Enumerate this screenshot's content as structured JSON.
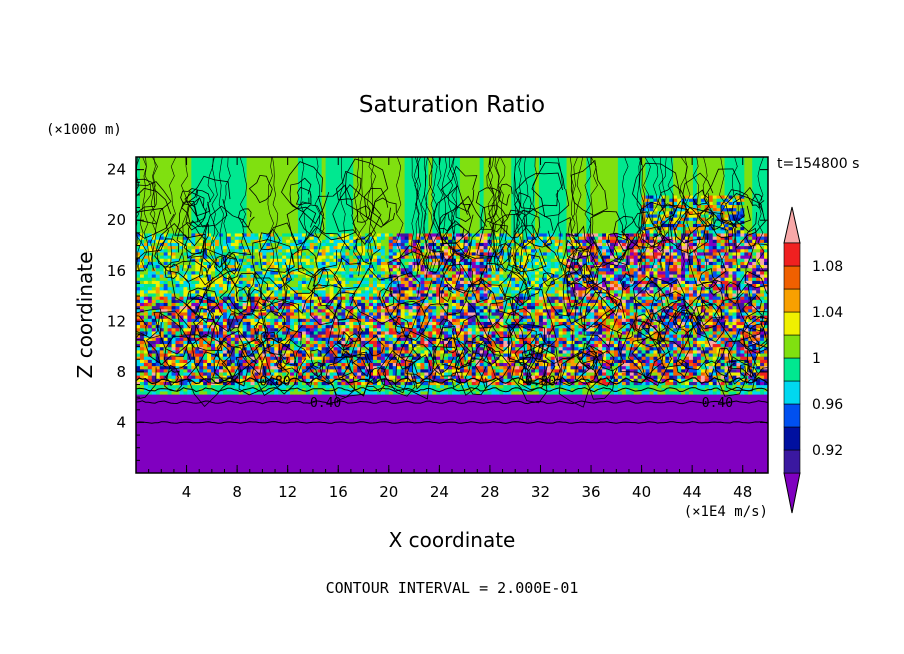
{
  "chart_data": {
    "type": "heatmap",
    "title": "Saturation Ratio",
    "xlabel": "X coordinate",
    "ylabel": "Z coordinate",
    "x_units": "(×1E4 m/s)",
    "y_units": "(×1000 m)",
    "time_label": "t=154800 s",
    "footer": "CONTOUR INTERVAL = 2.000E-01",
    "xlim": [
      0,
      50
    ],
    "ylim": [
      0,
      25
    ],
    "x_ticks": [
      4,
      8,
      12,
      16,
      20,
      24,
      28,
      32,
      36,
      40,
      44,
      48
    ],
    "y_ticks": [
      4,
      8,
      12,
      16,
      20,
      24
    ],
    "contour_labels": [
      {
        "text": "0.80",
        "x": 11,
        "z": 7.3
      },
      {
        "text": "0.40",
        "x": 15,
        "z": 5.6
      },
      {
        "text": "0.80",
        "x": 32,
        "z": 7.3
      },
      {
        "text": "0.40",
        "x": 46,
        "z": 5.6
      }
    ],
    "colorbar": {
      "tick_labels": [
        "1.08",
        "1.04",
        "1",
        "0.96",
        "0.92"
      ],
      "tick_values": [
        1.08,
        1.04,
        1.0,
        0.96,
        0.92
      ],
      "levels": [
        0.9,
        0.92,
        0.94,
        0.96,
        0.98,
        1.0,
        1.02,
        1.04,
        1.06,
        1.08,
        1.1
      ],
      "colors": [
        "#3a18a0",
        "#0010a0",
        "#0050f0",
        "#00d8f0",
        "#00e890",
        "#80e010",
        "#f0f000",
        "#f8a000",
        "#f06000",
        "#f02020"
      ],
      "under_color": "#8000c0",
      "over_color": "#f8a8a8"
    }
  }
}
